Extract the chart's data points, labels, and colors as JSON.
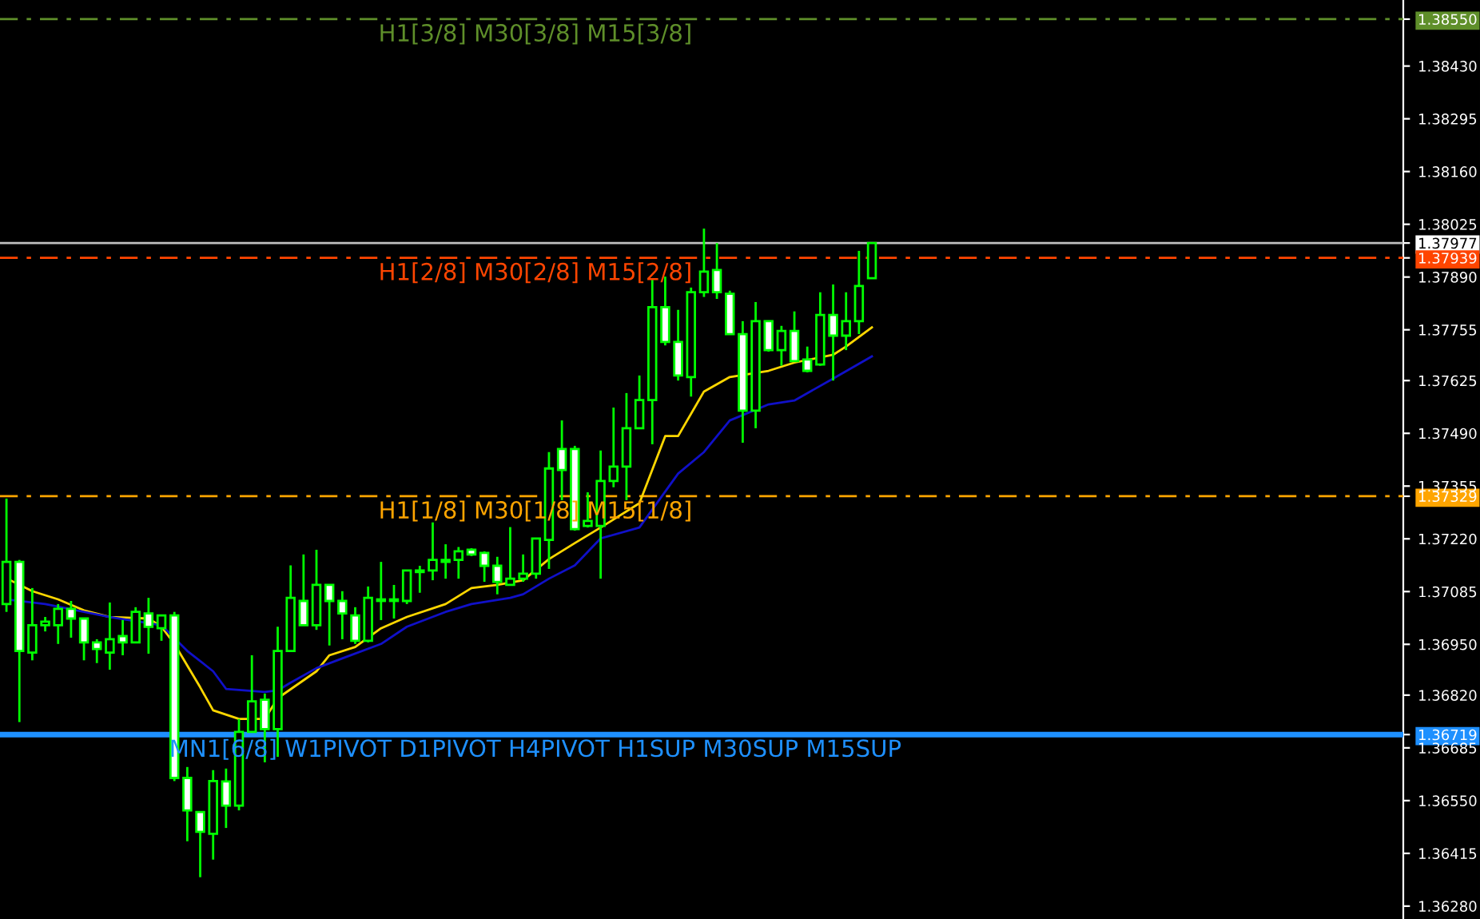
{
  "chart_data": {
    "type": "candlestick",
    "categories": [
      null,
      null,
      null,
      null,
      null,
      null,
      null,
      null,
      null,
      null,
      null,
      null,
      null,
      null,
      null,
      null,
      null,
      null,
      null,
      null,
      null,
      null,
      null,
      null,
      null,
      null,
      null,
      null,
      null,
      null,
      null,
      null,
      null,
      null,
      null,
      null,
      null,
      null,
      null,
      null,
      null,
      null,
      null,
      null,
      null,
      null,
      null,
      null,
      null,
      null,
      null,
      null,
      null,
      null,
      null,
      null,
      null,
      null,
      null,
      null,
      null,
      null,
      null,
      null,
      null,
      null,
      null,
      null
    ],
    "ohlc": [
      [
        1.37053,
        1.37323,
        1.37033,
        1.37161
      ],
      [
        1.37161,
        1.37166,
        1.36751,
        1.36933
      ],
      [
        1.36929,
        1.37094,
        1.36909,
        1.36999
      ],
      [
        1.36999,
        1.3702,
        1.36983,
        1.37008
      ],
      [
        1.36999,
        1.37053,
        1.36951,
        1.37041
      ],
      [
        1.37041,
        1.37061,
        1.36967,
        1.37016
      ],
      [
        1.37016,
        1.37016,
        1.36909,
        1.36955
      ],
      [
        1.36955,
        1.36963,
        1.36902,
        1.36938
      ],
      [
        1.36929,
        1.37057,
        1.36885,
        1.36963
      ],
      [
        1.36971,
        1.37012,
        1.36922,
        1.36955
      ],
      [
        1.36955,
        1.37045,
        1.36955,
        1.37033
      ],
      [
        1.37029,
        1.37069,
        1.36926,
        1.36995
      ],
      [
        1.36991,
        1.37024,
        1.36959,
        1.37024
      ],
      [
        1.37024,
        1.37033,
        1.366,
        1.36608
      ],
      [
        1.36608,
        1.36636,
        1.36446,
        1.36525
      ],
      [
        1.36521,
        1.36521,
        1.36354,
        1.3647
      ],
      [
        1.36465,
        1.36628,
        1.36399,
        1.366
      ],
      [
        1.36599,
        1.36632,
        1.3648,
        1.36537
      ],
      [
        1.36537,
        1.36759,
        1.36525,
        1.36726
      ],
      [
        1.36726,
        1.36922,
        1.36726,
        1.36804
      ],
      [
        1.36808,
        1.36824,
        1.36648,
        1.36733
      ],
      [
        1.36733,
        1.36995,
        1.36662,
        1.36933
      ],
      [
        1.36933,
        1.37152,
        1.36933,
        1.37069
      ],
      [
        1.37061,
        1.3718,
        1.36999,
        1.36999
      ],
      [
        1.36999,
        1.37192,
        1.36987,
        1.37102
      ],
      [
        1.37102,
        1.37102,
        1.36947,
        1.37061
      ],
      [
        1.37061,
        1.37086,
        1.36963,
        1.37029
      ],
      [
        1.37024,
        1.37045,
        1.36951,
        1.36959
      ],
      [
        1.36959,
        1.37098,
        1.36955,
        1.37069
      ],
      [
        1.37061,
        1.37161,
        1.37012,
        1.37065
      ],
      [
        1.37065,
        1.37102,
        1.37016,
        1.37061
      ],
      [
        1.37061,
        1.37139,
        1.37053,
        1.37139
      ],
      [
        1.37139,
        1.37151,
        1.37082,
        1.37135
      ],
      [
        1.37139,
        1.37262,
        1.37114,
        1.37166
      ],
      [
        1.37161,
        1.37206,
        1.37118,
        1.37166
      ],
      [
        1.37166,
        1.37199,
        1.37118,
        1.37188
      ],
      [
        1.37192,
        1.37196,
        1.37176,
        1.3718
      ],
      [
        1.37184,
        1.37188,
        1.3711,
        1.37151
      ],
      [
        1.37151,
        1.37174,
        1.37078,
        1.3711
      ],
      [
        1.37102,
        1.3725,
        1.37102,
        1.37118
      ],
      [
        1.37118,
        1.3718,
        1.3711,
        1.37131
      ],
      [
        1.37131,
        1.37221,
        1.37118,
        1.37221
      ],
      [
        1.37217,
        1.37442,
        1.37143,
        1.374
      ],
      [
        1.3745,
        1.37523,
        1.37319,
        1.37396
      ],
      [
        1.3745,
        1.37458,
        1.37241,
        1.37245
      ],
      [
        1.37253,
        1.37339,
        1.37249,
        1.37266
      ],
      [
        1.37253,
        1.37446,
        1.37118,
        1.37368
      ],
      [
        1.37368,
        1.37556,
        1.37352,
        1.37405
      ],
      [
        1.37405,
        1.37593,
        1.37319,
        1.37503
      ],
      [
        1.37503,
        1.37638,
        1.37503,
        1.37575
      ],
      [
        1.37575,
        1.37883,
        1.37462,
        1.37813
      ],
      [
        1.37813,
        1.37891,
        1.37715,
        1.37724
      ],
      [
        1.37724,
        1.37806,
        1.37625,
        1.37638
      ],
      [
        1.37634,
        1.37863,
        1.37584,
        1.37851
      ],
      [
        1.37851,
        1.38014,
        1.37839,
        1.37904
      ],
      [
        1.37908,
        1.37977,
        1.37834,
        1.37851
      ],
      [
        1.37847,
        1.37855,
        1.37744,
        1.37744
      ],
      [
        1.37744,
        1.37777,
        1.37466,
        1.37548
      ],
      [
        1.37548,
        1.37826,
        1.37503,
        1.37777
      ],
      [
        1.37777,
        1.37777,
        1.37699,
        1.37703
      ],
      [
        1.37703,
        1.37765,
        1.37663,
        1.37752
      ],
      [
        1.37752,
        1.37802,
        1.37675,
        1.37675
      ],
      [
        1.37679,
        1.37712,
        1.37646,
        1.3765
      ],
      [
        1.37666,
        1.37851,
        1.37663,
        1.37793
      ],
      [
        1.37793,
        1.37871,
        1.37625,
        1.3774
      ],
      [
        1.3774,
        1.37851,
        1.37703,
        1.37777
      ],
      [
        1.37777,
        1.37957,
        1.37744,
        1.37867
      ],
      [
        1.37887,
        1.37977,
        1.37887,
        1.37977
      ]
    ],
    "series": [
      {
        "type": "line",
        "color": "#ffd700",
        "values": [
          1.37119,
          null,
          1.37086,
          null,
          1.37065,
          null,
          1.37037,
          null,
          1.3702,
          null,
          null,
          1.37016,
          1.36995,
          1.36951,
          null,
          1.3684,
          1.36781,
          null,
          1.36759,
          null,
          1.36759,
          1.36812,
          null,
          null,
          1.36881,
          1.36922,
          null,
          1.36943,
          null,
          1.36991,
          null,
          1.3702,
          null,
          null,
          1.37053,
          null,
          1.37094,
          null,
          1.37102,
          null,
          1.37114,
          null,
          1.37168,
          null,
          1.37209,
          null,
          1.37249,
          null,
          null,
          1.37311,
          null,
          1.37483,
          1.37483,
          null,
          1.37597,
          null,
          1.37634,
          null,
          null,
          1.3765,
          null,
          1.37671,
          null,
          null,
          1.37691,
          1.37712,
          null,
          1.37761
        ]
      },
      {
        "type": "line",
        "color": "#1010c8",
        "values": [
          1.37065,
          null,
          null,
          1.37053,
          null,
          null,
          null,
          null,
          1.3702,
          null,
          null,
          null,
          1.36999,
          null,
          1.36933,
          null,
          1.36881,
          1.36836,
          null,
          null,
          1.36828,
          1.36832,
          1.36852,
          null,
          1.36889,
          null,
          1.36914,
          null,
          null,
          1.36951,
          null,
          1.36995,
          null,
          null,
          1.37033,
          null,
          1.37053,
          null,
          null,
          1.37069,
          1.37078,
          null,
          1.37118,
          null,
          1.37152,
          null,
          1.37221,
          null,
          null,
          1.37249,
          null,
          null,
          1.37387,
          null,
          1.37442,
          null,
          1.37523,
          null,
          null,
          1.37564,
          null,
          1.37574,
          null,
          null,
          1.3763,
          null,
          null,
          1.37687
        ]
      }
    ],
    "ylim": [
      1.36247,
      1.38599
    ],
    "yticks": [
      {
        "value": 1.3855,
        "label": "1.38550"
      },
      {
        "value": 1.37977,
        "label": "1.37977"
      },
      {
        "value": 1.37939,
        "label": "1.37939"
      },
      {
        "value": 1.37329,
        "label": "1.37329"
      },
      {
        "value": 1.36719,
        "label": "1.36719"
      },
      {
        "value": 1.3843,
        "label": "1.38430"
      },
      {
        "value": 1.38295,
        "label": "1.38295"
      },
      {
        "value": 1.3816,
        "label": "1.38160"
      },
      {
        "value": 1.38025,
        "label": "1.38025"
      },
      {
        "value": 1.3789,
        "label": "1.37890"
      },
      {
        "value": 1.37755,
        "label": "1.37755"
      },
      {
        "value": 1.37625,
        "label": "1.37625"
      },
      {
        "value": 1.3749,
        "label": "1.37490"
      },
      {
        "value": 1.37355,
        "label": "1.37355"
      },
      {
        "value": 1.3722,
        "label": "1.37220"
      },
      {
        "value": 1.37085,
        "label": "1.37085"
      },
      {
        "value": 1.3695,
        "label": "1.36950"
      },
      {
        "value": 1.3682,
        "label": "1.36820"
      },
      {
        "value": 1.36685,
        "label": "1.36685"
      },
      {
        "value": 1.3655,
        "label": "1.36550"
      },
      {
        "value": 1.36415,
        "label": "1.36415"
      },
      {
        "value": 1.3628,
        "label": "1.36280"
      }
    ],
    "ref_lines": [
      {
        "axis": "y",
        "value": 1.3855,
        "label": "H1[3/8] M30[3/8] M15[3/8]",
        "color": "#5f8f2a",
        "line_style": "dashed"
      },
      {
        "axis": "y",
        "value": 1.37977,
        "label": null,
        "color": "#c0c0c0",
        "line_style": "solid"
      },
      {
        "axis": "y",
        "value": 1.37939,
        "label": "H1[2/8] M30[2/8] M15[2/8]",
        "color": "#ff4500",
        "line_style": "dashed"
      },
      {
        "axis": "y",
        "value": 1.37329,
        "label": "H1[1/8] M30[1/8] M15[1/8]",
        "color": "#ffa500",
        "line_style": "dashed"
      },
      {
        "axis": "y",
        "value": 1.36719,
        "label": "MN1[6/8] W1PIVOT D1PIVOT H4PIVOT H1SUP M30SUP M15SUP",
        "color": "#1e90ff",
        "line_style": "solid"
      }
    ],
    "tick_labels": "y",
    "grid": false,
    "legend": false
  }
}
